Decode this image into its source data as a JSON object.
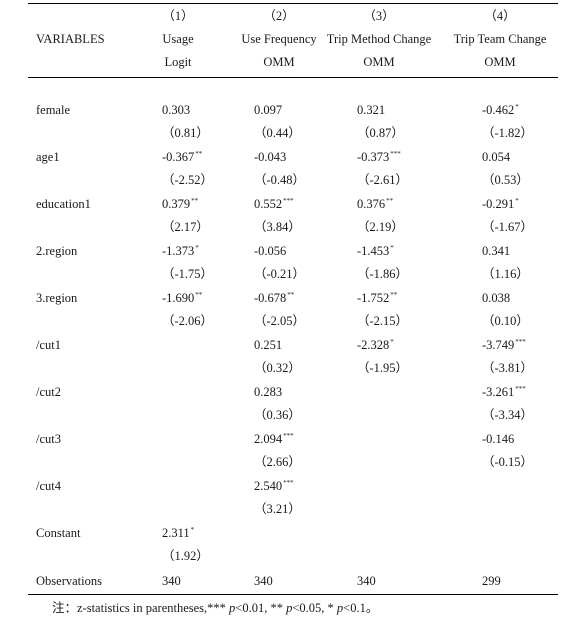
{
  "header": {
    "numbers": [
      "（1）",
      "（2）",
      "（3）",
      "（4）"
    ],
    "variables_label": "VARIABLES",
    "col_names": [
      "Usage",
      "Use Frequency",
      "Trip Method Change",
      "Trip Team Change"
    ],
    "col_models": [
      "Logit",
      "OMM",
      "OMM",
      "OMM"
    ]
  },
  "rows": [
    {
      "label": "female",
      "coef": [
        {
          "v": "0.303",
          "s": ""
        },
        {
          "v": "0.097",
          "s": ""
        },
        {
          "v": "0.321",
          "s": ""
        },
        {
          "v": "-0.462",
          "s": "*"
        }
      ],
      "z": [
        "（0.81）",
        "（0.44）",
        "（0.87）",
        "（-1.82）"
      ]
    },
    {
      "label": "age1",
      "coef": [
        {
          "v": "-0.367",
          "s": "**"
        },
        {
          "v": "-0.043",
          "s": ""
        },
        {
          "v": "-0.373",
          "s": "***"
        },
        {
          "v": "0.054",
          "s": ""
        }
      ],
      "z": [
        "（-2.52）",
        "（-0.48）",
        "（-2.61）",
        "（0.53）"
      ]
    },
    {
      "label": "education1",
      "coef": [
        {
          "v": "0.379",
          "s": "**"
        },
        {
          "v": "0.552",
          "s": "***"
        },
        {
          "v": "0.376",
          "s": "**"
        },
        {
          "v": "-0.291",
          "s": "*"
        }
      ],
      "z": [
        "（2.17）",
        "（3.84）",
        "（2.19）",
        "（-1.67）"
      ]
    },
    {
      "label": "2.region",
      "coef": [
        {
          "v": "-1.373",
          "s": "*"
        },
        {
          "v": "-0.056",
          "s": ""
        },
        {
          "v": "-1.453",
          "s": "*"
        },
        {
          "v": "0.341",
          "s": ""
        }
      ],
      "z": [
        "（-1.75）",
        "（-0.21）",
        "（-1.86）",
        "（1.16）"
      ]
    },
    {
      "label": "3.region",
      "coef": [
        {
          "v": "-1.690",
          "s": "**"
        },
        {
          "v": "-0.678",
          "s": "**"
        },
        {
          "v": "-1.752",
          "s": "**"
        },
        {
          "v": "0.038",
          "s": ""
        }
      ],
      "z": [
        "（-2.06）",
        "（-2.05）",
        "（-2.15）",
        "（0.10）"
      ]
    },
    {
      "label": "/cut1",
      "coef": [
        {
          "v": "",
          "s": ""
        },
        {
          "v": "0.251",
          "s": ""
        },
        {
          "v": "-2.328",
          "s": "*"
        },
        {
          "v": "-3.749",
          "s": "***"
        }
      ],
      "z": [
        "",
        "（0.32）",
        "（-1.95）",
        "（-3.81）"
      ]
    },
    {
      "label": "/cut2",
      "coef": [
        {
          "v": "",
          "s": ""
        },
        {
          "v": "0.283",
          "s": ""
        },
        {
          "v": "",
          "s": ""
        },
        {
          "v": "-3.261",
          "s": "***"
        }
      ],
      "z": [
        "",
        "（0.36）",
        "",
        "（-3.34）"
      ]
    },
    {
      "label": "/cut3",
      "coef": [
        {
          "v": "",
          "s": ""
        },
        {
          "v": "2.094",
          "s": "***"
        },
        {
          "v": "",
          "s": ""
        },
        {
          "v": "-0.146",
          "s": ""
        }
      ],
      "z": [
        "",
        "（2.66）",
        "",
        "（-0.15）"
      ]
    },
    {
      "label": "/cut4",
      "coef": [
        {
          "v": "",
          "s": ""
        },
        {
          "v": "2.540",
          "s": "***"
        },
        {
          "v": "",
          "s": ""
        },
        {
          "v": "",
          "s": ""
        }
      ],
      "z": [
        "",
        "（3.21）",
        "",
        ""
      ]
    },
    {
      "label": "Constant",
      "coef": [
        {
          "v": "2.311",
          "s": "*"
        },
        {
          "v": "",
          "s": ""
        },
        {
          "v": "",
          "s": ""
        },
        {
          "v": "",
          "s": ""
        }
      ],
      "z": [
        "（1.92）",
        "",
        "",
        ""
      ]
    }
  ],
  "observations": {
    "label": "Observations",
    "values": [
      "340",
      "340",
      "340",
      "299"
    ]
  },
  "note": {
    "prefix": "注：z-statistics in parentheses,*** ",
    "p1": "p",
    "t1": "<0.01, ** ",
    "p2": "p",
    "t2": "<0.05, * ",
    "p3": "p",
    "t3": "<0.1。"
  }
}
